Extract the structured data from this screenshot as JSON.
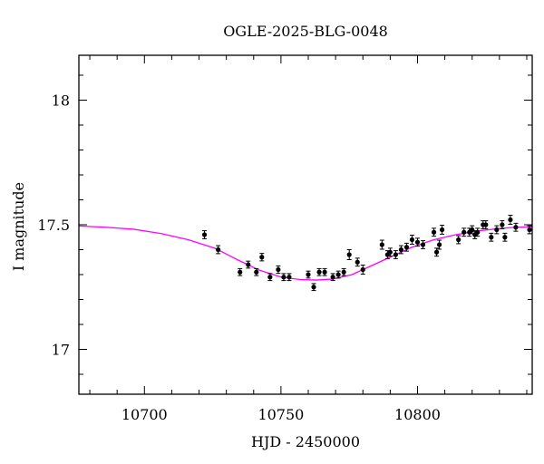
{
  "chart_data": {
    "type": "scatter",
    "title": "OGLE-2025-BLG-0048",
    "xlabel": "HJD - 2450000",
    "ylabel": "I magnitude",
    "xlim": [
      10676,
      10842
    ],
    "ylim": [
      18.18,
      16.82
    ],
    "y_inverted": true,
    "x_ticks": [
      10700,
      10750,
      10800
    ],
    "x_tick_labels": [
      "10700",
      "10750",
      "10800"
    ],
    "y_ticks": [
      17,
      17.5,
      18
    ],
    "y_tick_labels": [
      "17",
      "17.5",
      "18"
    ],
    "grid": false,
    "colors": {
      "points": "#000000",
      "model": "#ff00ff"
    },
    "model": {
      "name": "",
      "x": [
        10676,
        10686,
        10696,
        10706,
        10716,
        10726,
        10734,
        10742,
        10750,
        10757,
        10763,
        10769,
        10776,
        10783,
        10790,
        10798,
        10806,
        10814,
        10822,
        10830,
        10836,
        10842
      ],
      "y": [
        17.495,
        17.49,
        17.482,
        17.465,
        17.44,
        17.405,
        17.36,
        17.318,
        17.29,
        17.28,
        17.278,
        17.282,
        17.3,
        17.335,
        17.37,
        17.41,
        17.44,
        17.46,
        17.475,
        17.485,
        17.49,
        17.492
      ]
    },
    "series": [
      {
        "x": [
          10722,
          10727,
          10735,
          10738,
          10741,
          10743,
          10746,
          10749,
          10751,
          10753,
          10760,
          10762,
          10764,
          10766,
          10769,
          10771,
          10773,
          10775,
          10778,
          10780,
          10787,
          10789,
          10790,
          10792,
          10794,
          10796,
          10798,
          10800,
          10802,
          10806,
          10807,
          10808,
          10809,
          10815,
          10817,
          10819,
          10820,
          10821,
          10822,
          10824,
          10825,
          10827,
          10829,
          10831,
          10832,
          10834,
          10836,
          10841
        ],
        "y": [
          17.46,
          17.4,
          17.31,
          17.34,
          17.31,
          17.37,
          17.29,
          17.32,
          17.29,
          17.29,
          17.3,
          17.25,
          17.31,
          17.31,
          17.29,
          17.3,
          17.31,
          17.38,
          17.35,
          17.32,
          17.42,
          17.38,
          17.39,
          17.38,
          17.4,
          17.41,
          17.44,
          17.43,
          17.42,
          17.47,
          17.39,
          17.42,
          17.48,
          17.44,
          17.47,
          17.47,
          17.48,
          17.46,
          17.47,
          17.5,
          17.5,
          17.45,
          17.48,
          17.5,
          17.45,
          17.52,
          17.49,
          17.48
        ],
        "err": [
          0.016,
          0.016,
          0.014,
          0.014,
          0.014,
          0.015,
          0.014,
          0.015,
          0.014,
          0.014,
          0.014,
          0.014,
          0.014,
          0.014,
          0.014,
          0.014,
          0.014,
          0.02,
          0.016,
          0.018,
          0.018,
          0.016,
          0.016,
          0.016,
          0.016,
          0.016,
          0.018,
          0.016,
          0.016,
          0.016,
          0.016,
          0.018,
          0.018,
          0.016,
          0.016,
          0.016,
          0.016,
          0.016,
          0.016,
          0.016,
          0.016,
          0.016,
          0.016,
          0.016,
          0.016,
          0.018,
          0.016,
          0.016
        ]
      }
    ]
  }
}
